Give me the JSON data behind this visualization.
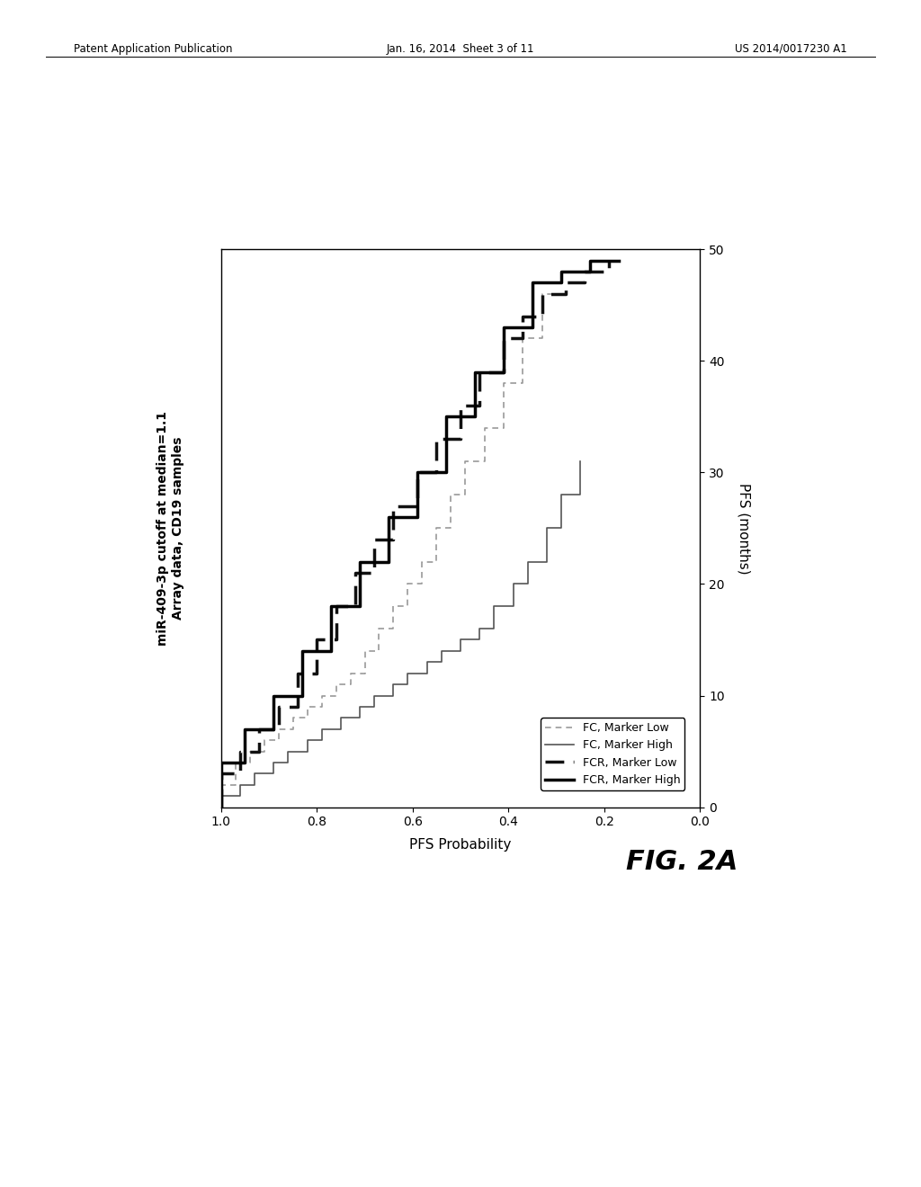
{
  "title_line1": "miR-409-3p cutoff at median=1.1",
  "title_line2": "Array data, CD19 samples",
  "xlabel_bottom": "PFS Probability",
  "ylabel_right": "PFS (months)",
  "header_left": "Patent Application Publication",
  "header_center": "Jan. 16, 2014  Sheet 3 of 11",
  "header_right": "US 2014/0017230 A1",
  "figure_label": "FIG. 2A",
  "legend_entries": [
    {
      "label": "FC, Marker Low",
      "linestyle": "dashed",
      "linewidth": 1.2,
      "color": "#999999",
      "dashes": [
        4,
        3
      ]
    },
    {
      "label": "FC, Marker High",
      "linestyle": "solid",
      "linewidth": 1.2,
      "color": "#555555"
    },
    {
      "label": "FCR, Marker Low",
      "linestyle": "dashed",
      "linewidth": 2.5,
      "color": "#111111",
      "dashes": [
        6,
        3
      ]
    },
    {
      "label": "FCR, Marker High",
      "linestyle": "solid",
      "linewidth": 2.5,
      "color": "#000000"
    }
  ],
  "curves": {
    "fc_high": {
      "prob": [
        1.0,
        1.0,
        0.96,
        0.96,
        0.93,
        0.93,
        0.89,
        0.89,
        0.86,
        0.86,
        0.82,
        0.82,
        0.79,
        0.79,
        0.75,
        0.75,
        0.71,
        0.71,
        0.68,
        0.68,
        0.64,
        0.64,
        0.61,
        0.61,
        0.57,
        0.57,
        0.54,
        0.54,
        0.5,
        0.5,
        0.46,
        0.46,
        0.43,
        0.43,
        0.39,
        0.39,
        0.36,
        0.36,
        0.32,
        0.32,
        0.29,
        0.29,
        0.25,
        0.25
      ],
      "time": [
        0,
        1,
        1,
        2,
        2,
        3,
        3,
        4,
        4,
        5,
        5,
        6,
        6,
        7,
        7,
        8,
        8,
        9,
        9,
        10,
        10,
        11,
        11,
        12,
        12,
        13,
        13,
        14,
        14,
        15,
        15,
        16,
        16,
        18,
        18,
        20,
        20,
        22,
        22,
        25,
        25,
        28,
        28,
        31
      ],
      "linestyle": "solid",
      "linewidth": 1.2,
      "color": "#555555",
      "dashes": null
    },
    "fc_low": {
      "prob": [
        1.0,
        1.0,
        0.97,
        0.97,
        0.94,
        0.94,
        0.91,
        0.91,
        0.88,
        0.88,
        0.85,
        0.85,
        0.82,
        0.82,
        0.79,
        0.79,
        0.76,
        0.76,
        0.73,
        0.73,
        0.7,
        0.7,
        0.67,
        0.67,
        0.64,
        0.64,
        0.61,
        0.61,
        0.58,
        0.58,
        0.55,
        0.55,
        0.52,
        0.52,
        0.49,
        0.49,
        0.45,
        0.45,
        0.41,
        0.41,
        0.37,
        0.37,
        0.33,
        0.33,
        0.29
      ],
      "time": [
        0,
        2,
        2,
        4,
        4,
        5,
        5,
        6,
        6,
        7,
        7,
        8,
        8,
        9,
        9,
        10,
        10,
        11,
        11,
        12,
        12,
        14,
        14,
        16,
        16,
        18,
        18,
        20,
        20,
        22,
        22,
        25,
        25,
        28,
        28,
        31,
        31,
        34,
        34,
        38,
        38,
        42,
        42,
        46,
        46
      ],
      "linestyle": "dashed",
      "linewidth": 1.2,
      "color": "#999999",
      "dashes": [
        4,
        3
      ]
    },
    "fcr_low": {
      "prob": [
        1.0,
        1.0,
        0.96,
        0.96,
        0.92,
        0.92,
        0.88,
        0.88,
        0.84,
        0.84,
        0.8,
        0.8,
        0.76,
        0.76,
        0.72,
        0.72,
        0.68,
        0.68,
        0.64,
        0.64,
        0.59,
        0.59,
        0.55,
        0.55,
        0.5,
        0.5,
        0.46,
        0.46,
        0.41,
        0.41,
        0.37,
        0.37,
        0.33,
        0.33,
        0.28,
        0.28,
        0.24,
        0.24,
        0.19,
        0.19
      ],
      "time": [
        0,
        3,
        3,
        5,
        5,
        7,
        7,
        9,
        9,
        12,
        12,
        15,
        15,
        18,
        18,
        21,
        21,
        24,
        24,
        27,
        27,
        30,
        30,
        33,
        33,
        36,
        36,
        39,
        39,
        42,
        42,
        44,
        44,
        46,
        46,
        47,
        47,
        48,
        48,
        49
      ],
      "linestyle": "dashed",
      "linewidth": 2.5,
      "color": "#111111",
      "dashes": [
        6,
        3
      ]
    },
    "fcr_high": {
      "prob": [
        1.0,
        1.0,
        0.95,
        0.95,
        0.89,
        0.89,
        0.83,
        0.83,
        0.77,
        0.77,
        0.71,
        0.71,
        0.65,
        0.65,
        0.59,
        0.59,
        0.53,
        0.53,
        0.47,
        0.47,
        0.41,
        0.41,
        0.35,
        0.35,
        0.29,
        0.29,
        0.23,
        0.23,
        0.17
      ],
      "time": [
        0,
        4,
        4,
        7,
        7,
        10,
        10,
        14,
        14,
        18,
        18,
        22,
        22,
        26,
        26,
        30,
        30,
        35,
        35,
        39,
        39,
        43,
        43,
        47,
        47,
        48,
        48,
        49,
        49
      ],
      "linestyle": "solid",
      "linewidth": 2.5,
      "color": "#000000",
      "dashes": null
    }
  }
}
